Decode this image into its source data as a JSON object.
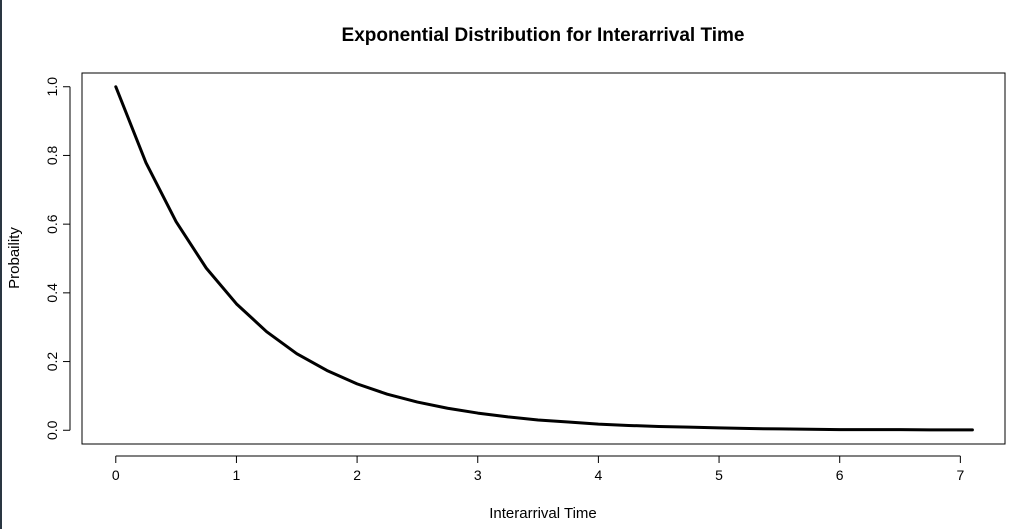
{
  "chart_data": {
    "type": "line",
    "title": "Exponential Distribution for Interarrival Time",
    "xlabel": "Interarrival Time",
    "ylabel": "Probaility",
    "xlim": [
      -0.28,
      7.37
    ],
    "ylim": [
      -0.04,
      1.04
    ],
    "x_ticks": [
      0,
      1,
      2,
      3,
      4,
      5,
      6,
      7
    ],
    "x_tick_labels": [
      "0",
      "1",
      "2",
      "3",
      "4",
      "5",
      "6",
      "7"
    ],
    "y_ticks": [
      0.0,
      0.2,
      0.4,
      0.6,
      0.8,
      1.0
    ],
    "y_tick_labels": [
      "0.0",
      "0.2",
      "0.4",
      "0.6",
      "0.8",
      "1.0"
    ],
    "grid": false,
    "legend": "none",
    "line_color": "#000000",
    "series": [
      {
        "x": [
          0.0,
          0.25,
          0.5,
          0.75,
          1.0,
          1.25,
          1.5,
          1.75,
          2.0,
          2.25,
          2.5,
          2.75,
          3.0,
          3.25,
          3.5,
          3.75,
          4.0,
          4.25,
          4.5,
          4.75,
          5.0,
          5.25,
          5.5,
          5.75,
          6.0,
          6.25,
          6.5,
          6.75,
          7.0,
          7.1
        ],
        "values": [
          1.0,
          0.779,
          0.607,
          0.472,
          0.368,
          0.287,
          0.223,
          0.174,
          0.135,
          0.105,
          0.082,
          0.064,
          0.05,
          0.039,
          0.03,
          0.024,
          0.018,
          0.014,
          0.011,
          0.009,
          0.007,
          0.005,
          0.004,
          0.003,
          0.002,
          0.002,
          0.002,
          0.001,
          0.001,
          0.001
        ]
      }
    ]
  }
}
